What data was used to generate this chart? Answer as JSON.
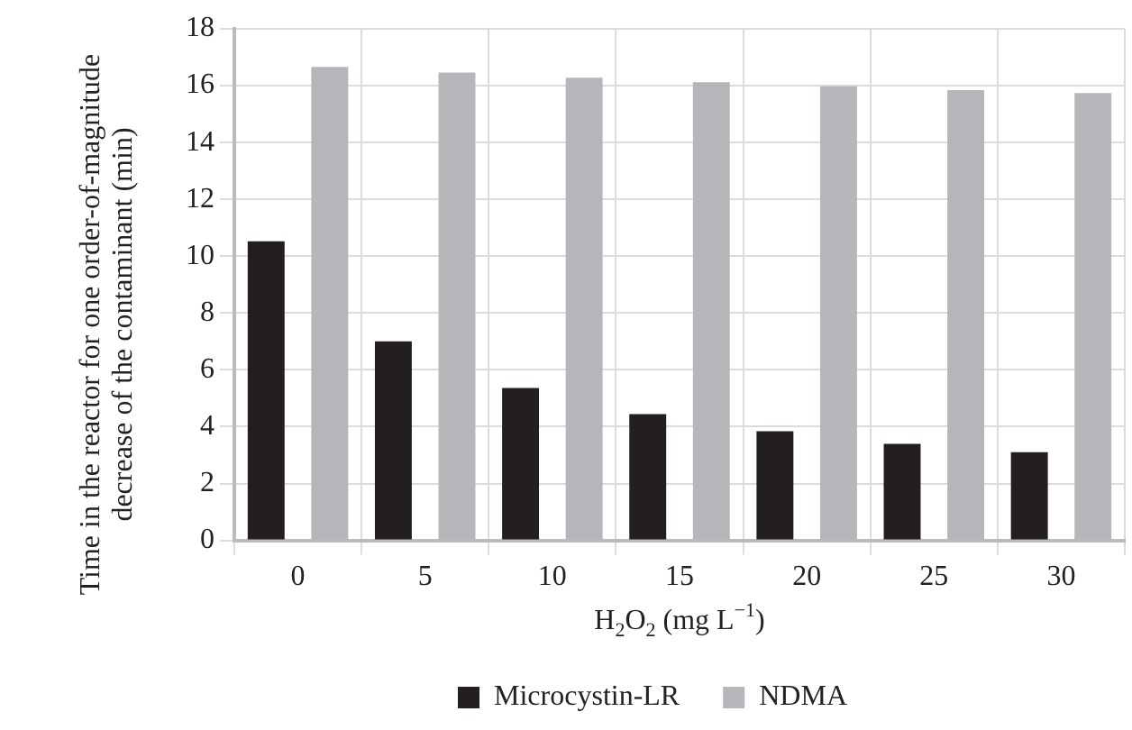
{
  "chart_data": {
    "type": "bar",
    "xlabel": "H$_{2}$O$_{2}$ (mg L$^{−1}$)",
    "ylabel": "Time in the reactor for one order-of-magnitude decrease of the contaminant (min)",
    "categories": [
      "0",
      "5",
      "10",
      "15",
      "20",
      "25",
      "30"
    ],
    "series": [
      {
        "name": "Microcystin-LR",
        "color": "#231f20",
        "values": [
          10.52,
          7.0,
          5.36,
          4.44,
          3.84,
          3.4,
          3.1
        ]
      },
      {
        "name": "NDMA",
        "color": "#b5b6b9",
        "values": [
          16.66,
          16.46,
          16.28,
          16.12,
          15.98,
          15.84,
          15.74
        ]
      }
    ],
    "ylim": [
      0,
      18
    ],
    "yticks": [
      0,
      2,
      4,
      6,
      8,
      10,
      12,
      14,
      16,
      18
    ],
    "grid": true,
    "legend": "bottom"
  }
}
